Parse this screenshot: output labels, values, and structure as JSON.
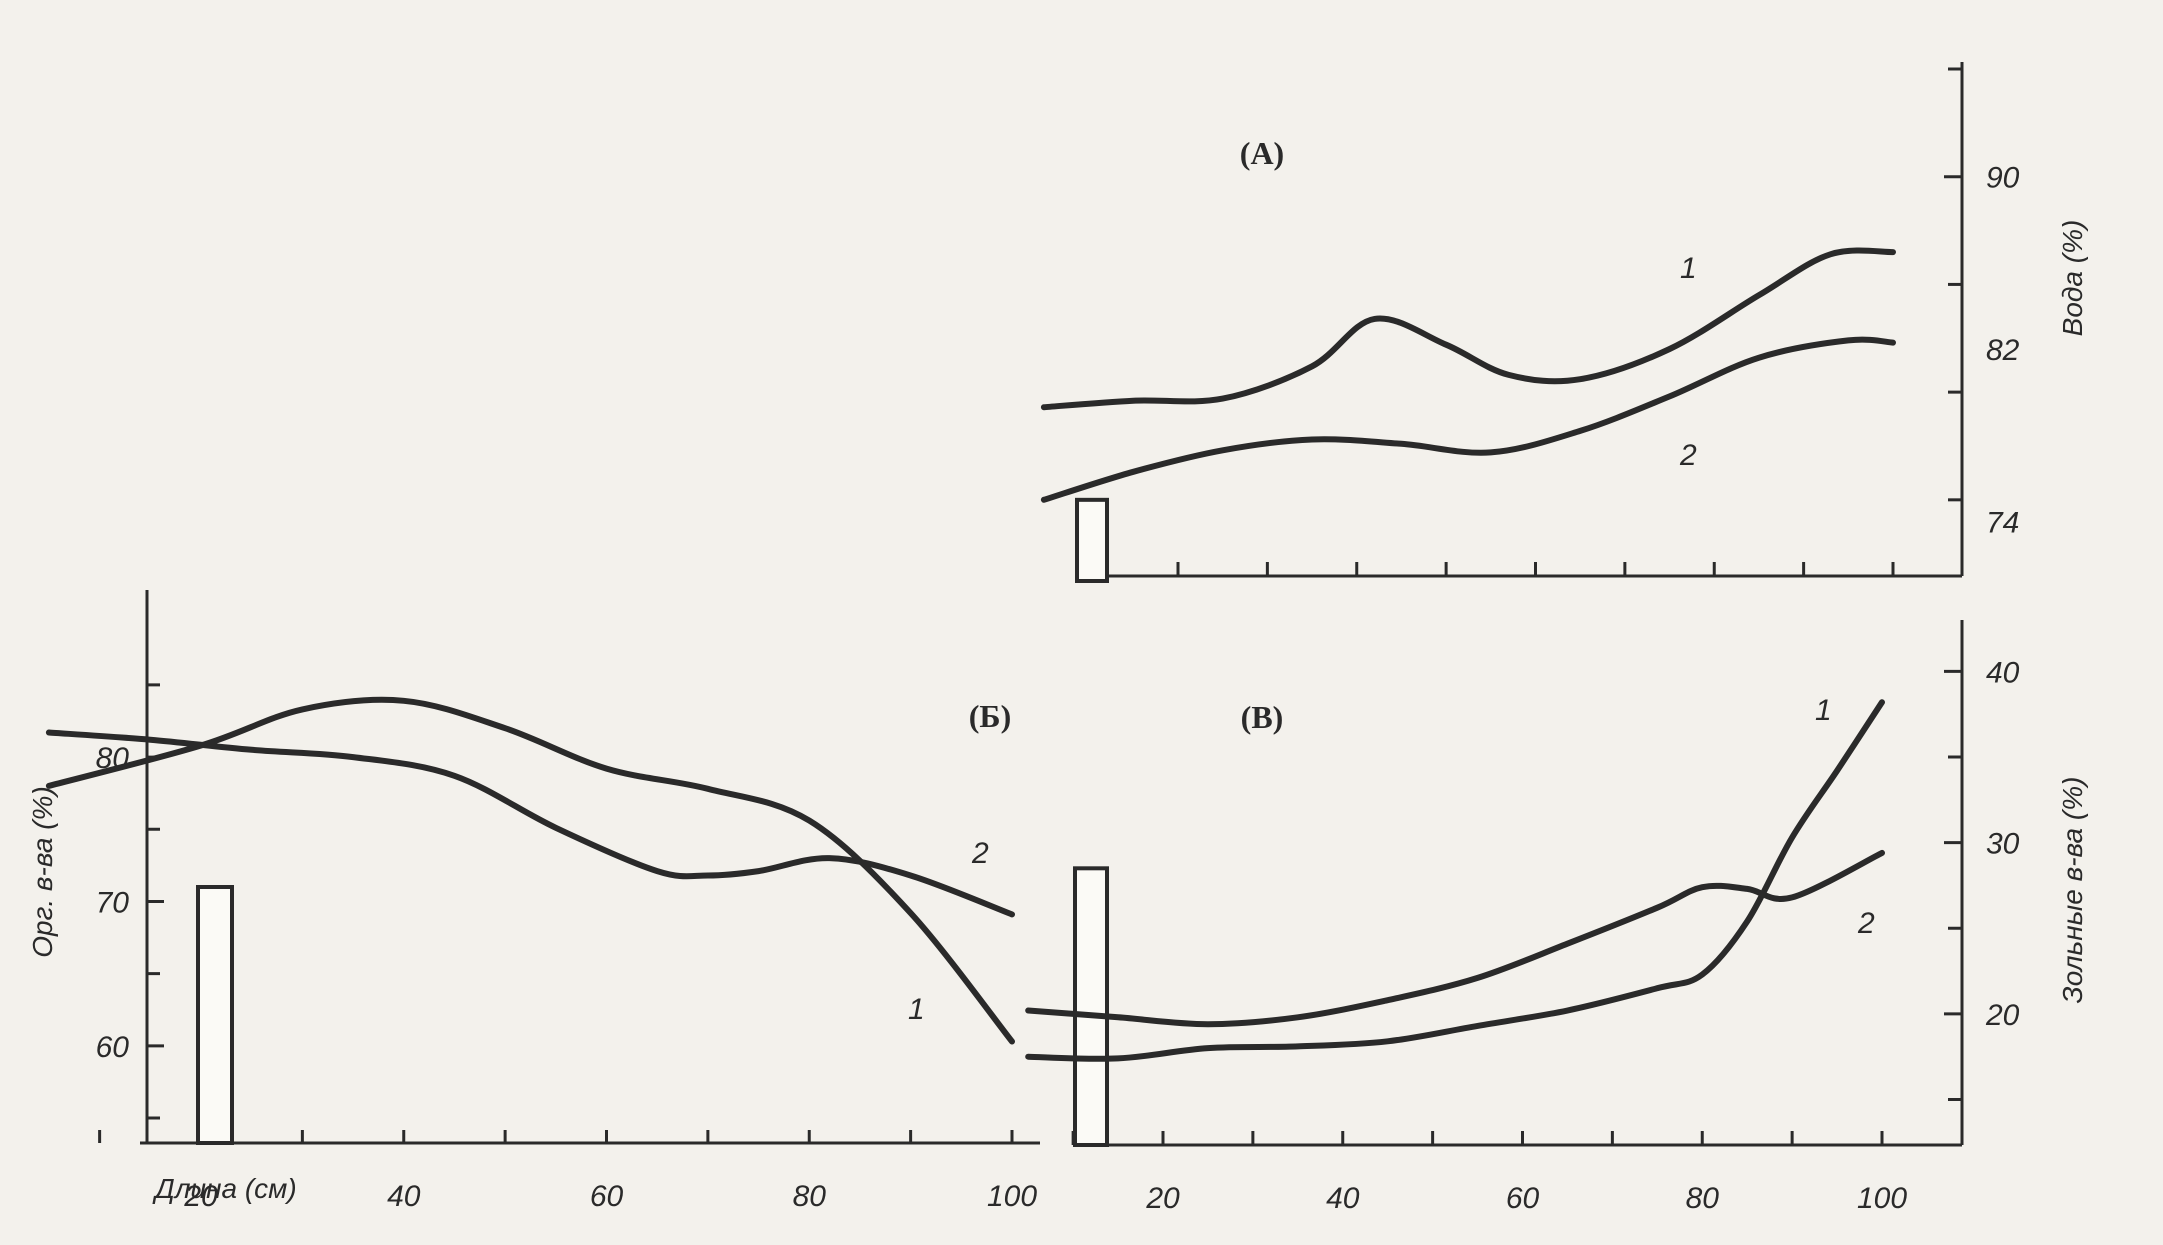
{
  "chart_data": [
    {
      "panel": "(A)",
      "type": "line",
      "ylabel": "Вода (%)",
      "xlim": [
        0,
        100
      ],
      "ylim": [
        71,
        95
      ],
      "yticks": [
        74,
        82,
        90
      ],
      "xticks": [],
      "bar": {
        "value": 75
      },
      "series": [
        {
          "name": "1",
          "x": [
            5,
            15,
            25,
            35,
            42,
            50,
            57,
            65,
            75,
            85,
            93,
            100
          ],
          "y": [
            79.3,
            79.6,
            79.7,
            81.2,
            83.4,
            82.2,
            80.8,
            80.6,
            82.0,
            84.5,
            86.4,
            86.5
          ]
        },
        {
          "name": "2",
          "x": [
            5,
            15,
            25,
            35,
            45,
            55,
            65,
            75,
            85,
            95,
            100
          ],
          "y": [
            75.0,
            76.3,
            77.3,
            77.8,
            77.6,
            77.2,
            78.2,
            79.8,
            81.6,
            82.4,
            82.3
          ]
        }
      ]
    },
    {
      "panel": "(Б)",
      "type": "line",
      "ylabel": "Орг. в-ва (%)",
      "xlabel": "Длина (см)",
      "xlim": [
        -5,
        100
      ],
      "ylim": [
        55,
        87
      ],
      "yticks": [
        60,
        70,
        80
      ],
      "xticks": [
        20,
        40,
        60,
        80,
        100
      ],
      "bar": {
        "value": 71
      },
      "series": [
        {
          "name": "1",
          "x": [
            5,
            20,
            30,
            40,
            50,
            60,
            70,
            80,
            90,
            100
          ],
          "y": [
            78.0,
            80.8,
            83.3,
            83.9,
            82.0,
            79.2,
            77.8,
            75.6,
            69.2,
            60.3
          ]
        },
        {
          "name": "2",
          "x": [
            5,
            15,
            25,
            35,
            45,
            55,
            65,
            70,
            75,
            82,
            90,
            100
          ],
          "y": [
            81.7,
            81.2,
            80.5,
            80.0,
            78.7,
            75.1,
            72.1,
            71.8,
            72.1,
            73.0,
            71.8,
            69.1
          ]
        }
      ]
    },
    {
      "panel": "(В)",
      "type": "line",
      "ylabel": "Зольные в-ва (%)",
      "xlim": [
        0,
        100
      ],
      "ylim": [
        11,
        43
      ],
      "yticks": [
        20,
        30,
        40
      ],
      "xticks": [
        20,
        40,
        60,
        80,
        100
      ],
      "bar": {
        "value": 28.5
      },
      "series": [
        {
          "name": "1",
          "x": [
            5,
            15,
            25,
            35,
            45,
            55,
            65,
            75,
            80,
            85,
            90,
            95,
            100
          ],
          "y": [
            17.5,
            17.4,
            18.0,
            18.1,
            18.4,
            19.3,
            20.2,
            21.5,
            22.3,
            25.4,
            30.3,
            34.2,
            38.2
          ]
        },
        {
          "name": "2",
          "x": [
            5,
            15,
            25,
            35,
            45,
            55,
            65,
            75,
            80,
            85,
            90,
            100
          ],
          "y": [
            20.2,
            19.8,
            19.4,
            19.8,
            20.8,
            22.1,
            24.1,
            26.2,
            27.4,
            27.3,
            26.8,
            29.4
          ]
        }
      ]
    }
  ]
}
